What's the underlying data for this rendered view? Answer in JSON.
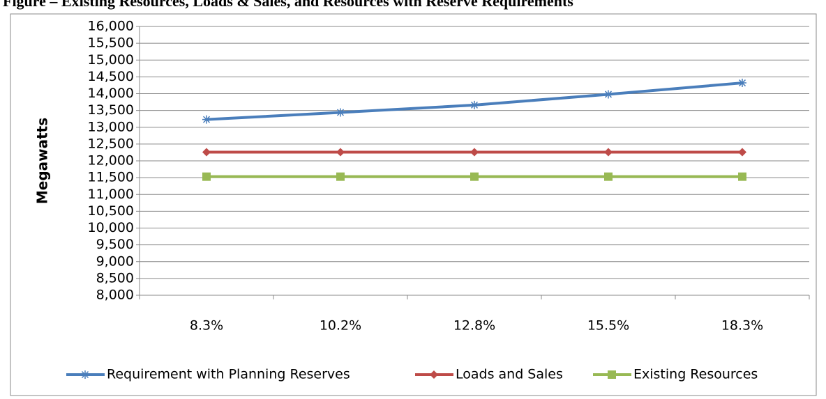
{
  "chart_data": {
    "type": "line",
    "title": "Figure – Existing Resources, Loads & Sales, and Resources with Reserve Requirements",
    "y_label": "Megawatts",
    "categories": [
      "8.3%",
      "10.2%",
      "12.8%",
      "15.5%",
      "18.3%"
    ],
    "series": [
      {
        "name": "Requirement with Planning Reserves",
        "color": "#4a7ebb",
        "marker": "star",
        "values": [
          13230,
          13440,
          13660,
          13980,
          14320
        ]
      },
      {
        "name": "Loads and Sales",
        "color": "#be4b48",
        "marker": "diamond",
        "values": [
          12260,
          12260,
          12260,
          12260,
          12260
        ]
      },
      {
        "name": "Existing Resources",
        "color": "#98b954",
        "marker": "square",
        "values": [
          11530,
          11530,
          11530,
          11530,
          11530
        ]
      }
    ],
    "ylim": [
      8000,
      16000
    ],
    "yticks": [
      {
        "value": 8000,
        "label": "8,000"
      },
      {
        "value": 8500,
        "label": "8,500"
      },
      {
        "value": 9000,
        "label": "9,000"
      },
      {
        "value": 9500,
        "label": "9,500"
      },
      {
        "value": 10000,
        "label": "10,000"
      },
      {
        "value": 10500,
        "label": "10,500"
      },
      {
        "value": 11000,
        "label": "11,000"
      },
      {
        "value": 11500,
        "label": "11,500"
      },
      {
        "value": 12000,
        "label": "12,000"
      },
      {
        "value": 12500,
        "label": "12,500"
      },
      {
        "value": 13000,
        "label": "13,000"
      },
      {
        "value": 13500,
        "label": "13,500"
      },
      {
        "value": 14000,
        "label": "14,000"
      },
      {
        "value": 14500,
        "label": "14,500"
      },
      {
        "value": 15000,
        "label": "15,000"
      },
      {
        "value": 15500,
        "label": "15,500"
      },
      {
        "value": 16000,
        "label": "16,000"
      }
    ],
    "grid": true,
    "legend": "bottom"
  }
}
